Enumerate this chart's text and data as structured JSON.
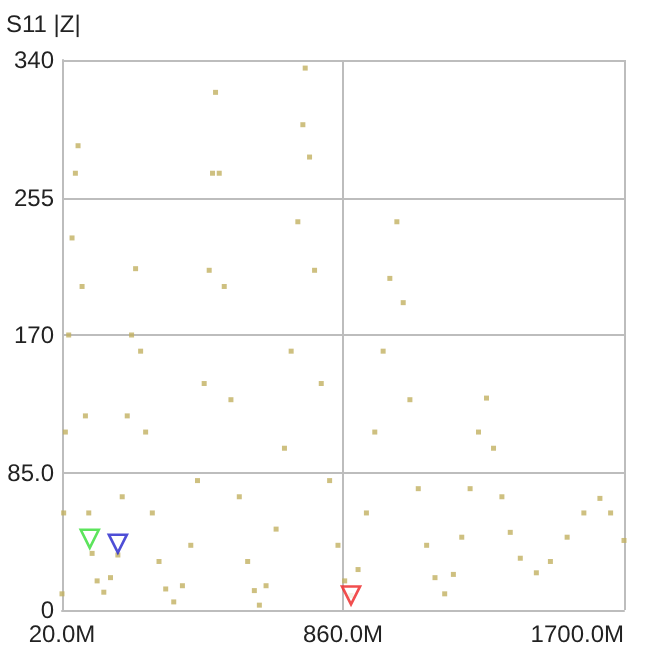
{
  "chart_data": {
    "type": "scatter",
    "ylabel": "S11 |Z|",
    "xlim": [
      20,
      1700
    ],
    "xticks": [
      {
        "value": 20,
        "label": "20.0M"
      },
      {
        "value": 860,
        "label": "860.0M"
      },
      {
        "value": 1700,
        "label": "1700.0M"
      }
    ],
    "ylim": [
      0,
      340
    ],
    "yticks": [
      0,
      {
        "value": 85,
        "label": "85.0"
      },
      170,
      255,
      340
    ],
    "grid": true,
    "marker": "square",
    "series": [
      {
        "color": "#c2b060",
        "x": [
          20,
          25,
          30,
          40,
          50,
          60,
          68,
          80,
          90,
          100,
          110,
          125,
          145,
          165,
          187,
          200,
          215,
          228,
          240,
          255,
          270,
          290,
          310,
          330,
          354,
          380,
          405,
          425,
          445,
          460,
          470,
          479,
          490,
          505,
          525,
          550,
          575,
          595,
          610,
          630,
          660,
          685,
          705,
          725,
          740,
          747,
          760,
          775,
          795,
          820,
          845,
          865,
          884,
          905,
          930,
          955,
          980,
          1000,
          1021,
          1040,
          1060,
          1085,
          1110,
          1135,
          1164,
          1190,
          1215,
          1240,
          1265,
          1289,
          1310,
          1335,
          1360,
          1390,
          1438,
          1480,
          1530,
          1580,
          1628,
          1660,
          1700
        ],
        "values": [
          10,
          60,
          110,
          170,
          230,
          270,
          287,
          200,
          120,
          60,
          35,
          18,
          11,
          20,
          34,
          70,
          120,
          170,
          211,
          160,
          110,
          60,
          30,
          13,
          5,
          15,
          40,
          80,
          140,
          210,
          270,
          320,
          270,
          200,
          130,
          70,
          30,
          12,
          3,
          15,
          50,
          100,
          160,
          240,
          300,
          335,
          280,
          210,
          140,
          80,
          40,
          18,
          9,
          25,
          60,
          110,
          160,
          205,
          240,
          190,
          130,
          75,
          40,
          20,
          10,
          22,
          45,
          75,
          110,
          131,
          100,
          70,
          48,
          32,
          23,
          30,
          45,
          60,
          69,
          60,
          43
        ]
      },
      {
        "color": "#33dd33",
        "marker": "triangle",
        "x": [
          103
        ],
        "values": [
          44
        ]
      },
      {
        "color": "#2222cc",
        "marker": "triangle",
        "x": [
          187
        ],
        "values": [
          41
        ]
      },
      {
        "color": "#ee2222",
        "marker": "triangle",
        "x": [
          884
        ],
        "values": [
          9
        ]
      }
    ]
  }
}
